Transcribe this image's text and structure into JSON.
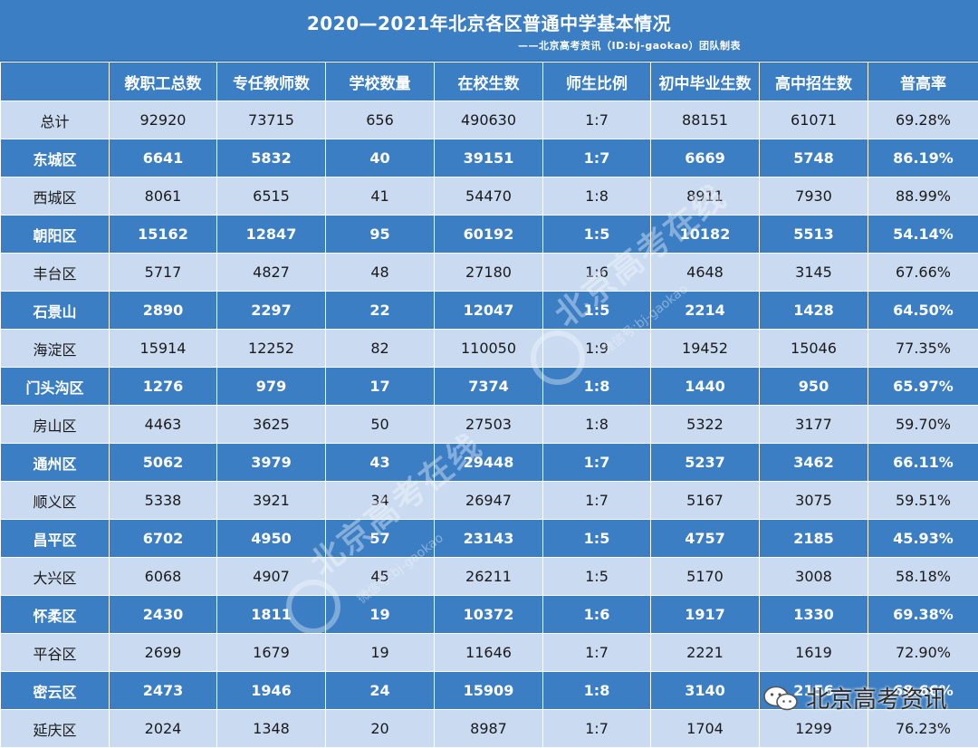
{
  "title": "2020—2021年北京各区普通中学基本情况",
  "subtitle": "——北京高考资讯（ID:bj-gaokao）团队制表",
  "columns": [
    "",
    "教职工总数",
    "专任教师数",
    "学校数量",
    "在校生数",
    "师生比例",
    "初中毕业生数",
    "高中招生数",
    "普高率"
  ],
  "rows": [
    [
      "总计",
      "92920",
      "73715",
      "656",
      "490630",
      "1:7",
      "88151",
      "61071",
      "69.28%"
    ],
    [
      "东城区",
      "6641",
      "5832",
      "40",
      "39151",
      "1:7",
      "6669",
      "5748",
      "86.19%"
    ],
    [
      "西城区",
      "8061",
      "6515",
      "41",
      "54470",
      "1:8",
      "8911",
      "7930",
      "88.99%"
    ],
    [
      "朝阳区",
      "15162",
      "12847",
      "95",
      "60192",
      "1:5",
      "10182",
      "5513",
      "54.14%"
    ],
    [
      "丰台区",
      "5717",
      "4827",
      "48",
      "27180",
      "1:6",
      "4648",
      "3145",
      "67.66%"
    ],
    [
      "石景山",
      "2890",
      "2297",
      "22",
      "12047",
      "1:5",
      "2214",
      "1428",
      "64.50%"
    ],
    [
      "海淀区",
      "15914",
      "12252",
      "82",
      "110050",
      "1:9",
      "19452",
      "15046",
      "77.35%"
    ],
    [
      "门头沟区",
      "1276",
      "979",
      "17",
      "7374",
      "1:8",
      "1440",
      "950",
      "65.97%"
    ],
    [
      "房山区",
      "4463",
      "3625",
      "50",
      "27503",
      "1:8",
      "5322",
      "3177",
      "59.70%"
    ],
    [
      "通州区",
      "5062",
      "3979",
      "43",
      "29448",
      "1:7",
      "5237",
      "3462",
      "66.11%"
    ],
    [
      "顺义区",
      "5338",
      "3921",
      "34",
      "26947",
      "1:7",
      "5167",
      "3075",
      "59.51%"
    ],
    [
      "昌平区",
      "6702",
      "4950",
      "57",
      "23143",
      "1:5",
      "4757",
      "2185",
      "45.93%"
    ],
    [
      "大兴区",
      "6068",
      "4907",
      "45",
      "26211",
      "1:5",
      "5170",
      "3008",
      "58.18%"
    ],
    [
      "怀柔区",
      "2430",
      "1811",
      "19",
      "10372",
      "1:6",
      "1917",
      "1330",
      "69.38%"
    ],
    [
      "平谷区",
      "2699",
      "1679",
      "19",
      "11646",
      "1:7",
      "2221",
      "1619",
      "72.90%"
    ],
    [
      "密云区",
      "2473",
      "1946",
      "24",
      "15909",
      "1:8",
      "3140",
      "2156",
      "68.66%"
    ],
    [
      "延庆区",
      "2024",
      "1348",
      "20",
      "8987",
      "1:7",
      "1704",
      "1299",
      "76.23%"
    ]
  ],
  "watermark": {
    "text": "北京高考在线",
    "sub": "微信号:bj-gaokao"
  },
  "brand": {
    "text": "北京高考资讯",
    "icon": "wechat-icon"
  },
  "colors": {
    "header_blue": "#3b7ec4",
    "row_light": "#c9daf1",
    "row_dark": "#3b7ec4"
  }
}
